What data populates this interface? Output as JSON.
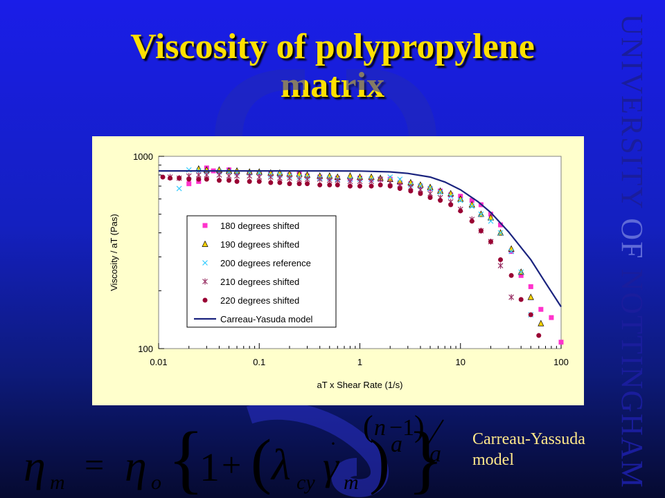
{
  "slide": {
    "title_line1": "Viscosity of polypropylene",
    "title_line2": "matrix",
    "side_text_part1": "UNIVERSITY ",
    "side_text_part2": "OF",
    "side_text_part3": " NOTTINGHAM",
    "caption_line1": "Carreau-Yassuda",
    "caption_line2": "model",
    "colors": {
      "title": "#ffe000",
      "caption": "#ffe88a",
      "chart_bg": "#ffffcc",
      "model_line": "#1a237e"
    }
  },
  "chart_data": {
    "type": "scatter",
    "xlabel": "aT x Shear Rate (1/s)",
    "ylabel": "Viscosity / aT (Pas)",
    "x_scale": "log",
    "y_scale": "log",
    "xlim": [
      0.01,
      100
    ],
    "ylim": [
      100,
      1000
    ],
    "x_ticks": [
      "0.01",
      "0.1",
      "1",
      "10",
      "100"
    ],
    "y_ticks": [
      "100",
      "1000"
    ],
    "legend_position": "lower-left",
    "series": [
      {
        "name": "180 degrees shifted",
        "marker": "square",
        "color": "#ff33cc",
        "points": [
          [
            0.02,
            720
          ],
          [
            0.025,
            740
          ],
          [
            0.03,
            870
          ],
          [
            0.035,
            840
          ],
          [
            0.04,
            830
          ],
          [
            0.05,
            850
          ],
          [
            0.06,
            820
          ],
          [
            0.08,
            820
          ],
          [
            0.1,
            820
          ],
          [
            0.13,
            810
          ],
          [
            0.16,
            800
          ],
          [
            0.2,
            800
          ],
          [
            0.25,
            810
          ],
          [
            0.3,
            790
          ],
          [
            0.4,
            780
          ],
          [
            0.5,
            770
          ],
          [
            0.6,
            770
          ],
          [
            0.8,
            760
          ],
          [
            1,
            770
          ],
          [
            1.3,
            760
          ],
          [
            1.6,
            760
          ],
          [
            2,
            760
          ],
          [
            2.5,
            730
          ],
          [
            3.2,
            720
          ],
          [
            4,
            700
          ],
          [
            5,
            680
          ],
          [
            6.3,
            660
          ],
          [
            8,
            630
          ],
          [
            10,
            620
          ],
          [
            13,
            590
          ],
          [
            16,
            560
          ],
          [
            20,
            500
          ],
          [
            25,
            440
          ],
          [
            32,
            320
          ],
          [
            40,
            240
          ],
          [
            50,
            210
          ],
          [
            63,
            160
          ],
          [
            80,
            145
          ],
          [
            100,
            108
          ]
        ]
      },
      {
        "name": "190 degrees shifted",
        "marker": "triangle",
        "color": "#ffd400",
        "points": [
          [
            0.025,
            860
          ],
          [
            0.03,
            850
          ],
          [
            0.04,
            850
          ],
          [
            0.05,
            840
          ],
          [
            0.06,
            840
          ],
          [
            0.08,
            830
          ],
          [
            0.1,
            830
          ],
          [
            0.13,
            820
          ],
          [
            0.16,
            820
          ],
          [
            0.2,
            810
          ],
          [
            0.25,
            810
          ],
          [
            0.3,
            800
          ],
          [
            0.4,
            790
          ],
          [
            0.5,
            790
          ],
          [
            0.6,
            780
          ],
          [
            0.8,
            790
          ],
          [
            1,
            780
          ],
          [
            1.3,
            780
          ],
          [
            1.6,
            770
          ],
          [
            2,
            760
          ],
          [
            2.5,
            740
          ],
          [
            3.2,
            730
          ],
          [
            4,
            710
          ],
          [
            5,
            690
          ],
          [
            6.3,
            660
          ],
          [
            8,
            640
          ],
          [
            10,
            600
          ],
          [
            13,
            560
          ],
          [
            16,
            500
          ],
          [
            20,
            480
          ],
          [
            25,
            400
          ],
          [
            32,
            330
          ],
          [
            40,
            250
          ],
          [
            50,
            185
          ],
          [
            63,
            135
          ]
        ]
      },
      {
        "name": "200 degrees reference",
        "marker": "x",
        "color": "#33ccff",
        "points": [
          [
            0.016,
            680
          ],
          [
            0.02,
            850
          ],
          [
            0.025,
            840
          ],
          [
            0.03,
            830
          ],
          [
            0.04,
            830
          ],
          [
            0.05,
            830
          ],
          [
            0.06,
            820
          ],
          [
            0.08,
            820
          ],
          [
            0.1,
            820
          ],
          [
            0.13,
            800
          ],
          [
            0.16,
            800
          ],
          [
            0.2,
            790
          ],
          [
            0.25,
            780
          ],
          [
            0.3,
            780
          ],
          [
            0.4,
            770
          ],
          [
            0.5,
            770
          ],
          [
            0.6,
            760
          ],
          [
            0.8,
            760
          ],
          [
            1,
            760
          ],
          [
            1.3,
            760
          ],
          [
            1.6,
            760
          ],
          [
            2,
            780
          ],
          [
            2.5,
            760
          ],
          [
            3.2,
            710
          ],
          [
            4,
            700
          ],
          [
            5,
            680
          ],
          [
            6.3,
            650
          ],
          [
            8,
            620
          ],
          [
            10,
            590
          ],
          [
            13,
            550
          ],
          [
            16,
            500
          ],
          [
            20,
            460
          ],
          [
            25,
            400
          ],
          [
            32,
            320
          ],
          [
            40,
            250
          ],
          [
            50,
            150
          ]
        ]
      },
      {
        "name": "210 degrees shifted",
        "marker": "asterisk",
        "color": "#993366",
        "points": [
          [
            0.013,
            780
          ],
          [
            0.016,
            770
          ],
          [
            0.02,
            790
          ],
          [
            0.025,
            800
          ],
          [
            0.03,
            800
          ],
          [
            0.04,
            800
          ],
          [
            0.05,
            790
          ],
          [
            0.06,
            790
          ],
          [
            0.08,
            790
          ],
          [
            0.1,
            780
          ],
          [
            0.13,
            780
          ],
          [
            0.16,
            770
          ],
          [
            0.2,
            770
          ],
          [
            0.25,
            760
          ],
          [
            0.3,
            760
          ],
          [
            0.4,
            760
          ],
          [
            0.5,
            750
          ],
          [
            0.6,
            750
          ],
          [
            0.8,
            740
          ],
          [
            1,
            740
          ],
          [
            1.3,
            740
          ],
          [
            1.6,
            760
          ],
          [
            2,
            730
          ],
          [
            2.5,
            710
          ],
          [
            3.2,
            690
          ],
          [
            4,
            670
          ],
          [
            5,
            640
          ],
          [
            6.3,
            610
          ],
          [
            8,
            580
          ],
          [
            10,
            530
          ],
          [
            13,
            470
          ],
          [
            16,
            410
          ],
          [
            20,
            360
          ],
          [
            25,
            270
          ],
          [
            32,
            185
          ]
        ]
      },
      {
        "name": "220 degrees shifted",
        "marker": "circle",
        "color": "#990033",
        "points": [
          [
            0.011,
            780
          ],
          [
            0.013,
            770
          ],
          [
            0.016,
            770
          ],
          [
            0.02,
            760
          ],
          [
            0.025,
            760
          ],
          [
            0.03,
            760
          ],
          [
            0.04,
            750
          ],
          [
            0.05,
            750
          ],
          [
            0.06,
            740
          ],
          [
            0.08,
            740
          ],
          [
            0.1,
            740
          ],
          [
            0.13,
            730
          ],
          [
            0.16,
            730
          ],
          [
            0.2,
            720
          ],
          [
            0.25,
            720
          ],
          [
            0.3,
            720
          ],
          [
            0.4,
            710
          ],
          [
            0.5,
            710
          ],
          [
            0.6,
            710
          ],
          [
            0.8,
            700
          ],
          [
            1,
            700
          ],
          [
            1.3,
            700
          ],
          [
            1.6,
            710
          ],
          [
            2,
            700
          ],
          [
            2.5,
            680
          ],
          [
            3.2,
            660
          ],
          [
            4,
            640
          ],
          [
            5,
            610
          ],
          [
            6.3,
            590
          ],
          [
            8,
            560
          ],
          [
            10,
            520
          ],
          [
            13,
            460
          ],
          [
            16,
            410
          ],
          [
            20,
            360
          ],
          [
            25,
            290
          ],
          [
            32,
            240
          ],
          [
            40,
            180
          ],
          [
            50,
            150
          ],
          [
            60,
            117
          ]
        ]
      },
      {
        "name": "Carreau-Yasuda model",
        "marker": "line",
        "color": "#1a237e",
        "points": [
          [
            0.01,
            840
          ],
          [
            0.1,
            840
          ],
          [
            0.5,
            840
          ],
          [
            1,
            838
          ],
          [
            2,
            830
          ],
          [
            3,
            815
          ],
          [
            5,
            780
          ],
          [
            7,
            735
          ],
          [
            10,
            670
          ],
          [
            15,
            580
          ],
          [
            20,
            510
          ],
          [
            30,
            405
          ],
          [
            50,
            290
          ],
          [
            70,
            220
          ],
          [
            100,
            165
          ]
        ]
      }
    ]
  }
}
